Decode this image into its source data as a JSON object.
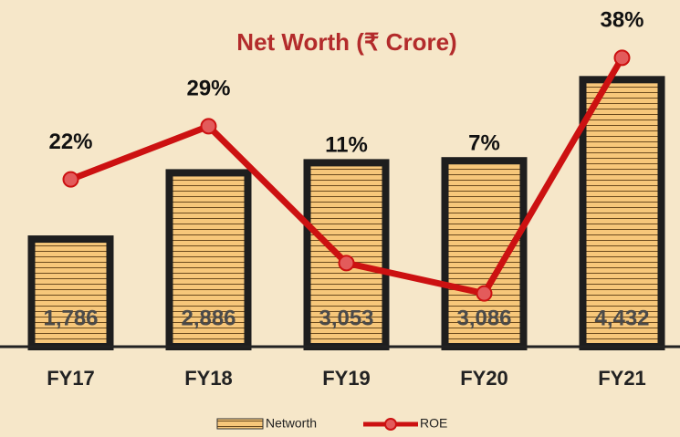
{
  "chart_data": {
    "type": "bar",
    "title": "Net Worth (₹ Crore)",
    "categories": [
      "FY17",
      "FY18",
      "FY19",
      "FY20",
      "FY21"
    ],
    "series": [
      {
        "name": "Networth",
        "type": "bar",
        "color": "#f7c77a",
        "values": [
          1786,
          2886,
          3053,
          3086,
          4432
        ],
        "value_labels": [
          "1,786",
          "2,886",
          "3,053",
          "3,086",
          "4,432"
        ]
      },
      {
        "name": "ROE",
        "type": "line",
        "axis": "y2",
        "color": "#cc1111",
        "values": [
          22,
          29,
          11,
          7,
          38
        ],
        "value_labels": [
          "22%",
          "29%",
          "11%",
          "7%",
          "38%"
        ]
      }
    ],
    "ylim": [
      0,
      5300
    ],
    "y2lim": [
      0,
      42
    ],
    "legend": "bottom"
  }
}
